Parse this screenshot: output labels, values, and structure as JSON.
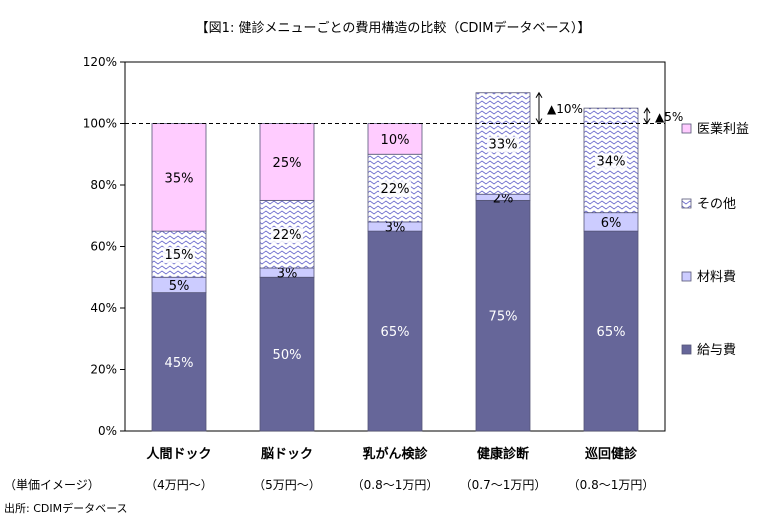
{
  "title": "【図1: 健診メニューごとの費用構造の比較（CDIMデータベース）】",
  "source_note": "出所: CDIMデータベース",
  "price_row_label": "（単価イメージ）",
  "colors": {
    "salary": "#666699",
    "material": "#ccccff",
    "other_pattern_stroke": "#6666cc",
    "profit": "#ffccff",
    "frame": "#000000"
  },
  "chart_data": {
    "type": "bar",
    "stacked": true,
    "categories": [
      "人間ドック",
      "脳ドック",
      "乳がん検診",
      "健康診断",
      "巡回健診"
    ],
    "price_labels": [
      "（4万円〜）",
      "（5万円〜）",
      "（0.8〜1万円）",
      "（0.7〜1万円）",
      "（0.8〜1万円）"
    ],
    "series": [
      {
        "name": "給与費",
        "values": [
          45,
          50,
          65,
          75,
          65
        ],
        "labels": [
          "45%",
          "50%",
          "65%",
          "75%",
          "65%"
        ]
      },
      {
        "name": "材料費",
        "values": [
          5,
          3,
          3,
          2,
          6
        ],
        "labels": [
          "5%",
          "3%",
          "3%",
          "2%",
          "6%"
        ]
      },
      {
        "name": "その他",
        "values": [
          15,
          22,
          22,
          33,
          34
        ],
        "labels": [
          "15%",
          "22%",
          "22%",
          "33%",
          "34%"
        ]
      },
      {
        "name": "医業利益",
        "values": [
          35,
          25,
          10,
          0,
          0
        ],
        "labels": [
          "35%",
          "25%",
          "10%",
          "",
          ""
        ]
      }
    ],
    "ylim": [
      0,
      120
    ],
    "yticks": [
      0,
      20,
      40,
      60,
      80,
      100,
      120
    ],
    "ytick_labels": [
      "0%",
      "20%",
      "40%",
      "60%",
      "80%",
      "100%",
      "120%"
    ],
    "reference_line": 100,
    "annotations": [
      {
        "category_index": 3,
        "text": "▲10%"
      },
      {
        "category_index": 4,
        "text": "▲5%"
      }
    ],
    "legend_order": [
      "医業利益",
      "その他",
      "材料費",
      "給与費"
    ],
    "legend_position": "right",
    "grid": false
  }
}
